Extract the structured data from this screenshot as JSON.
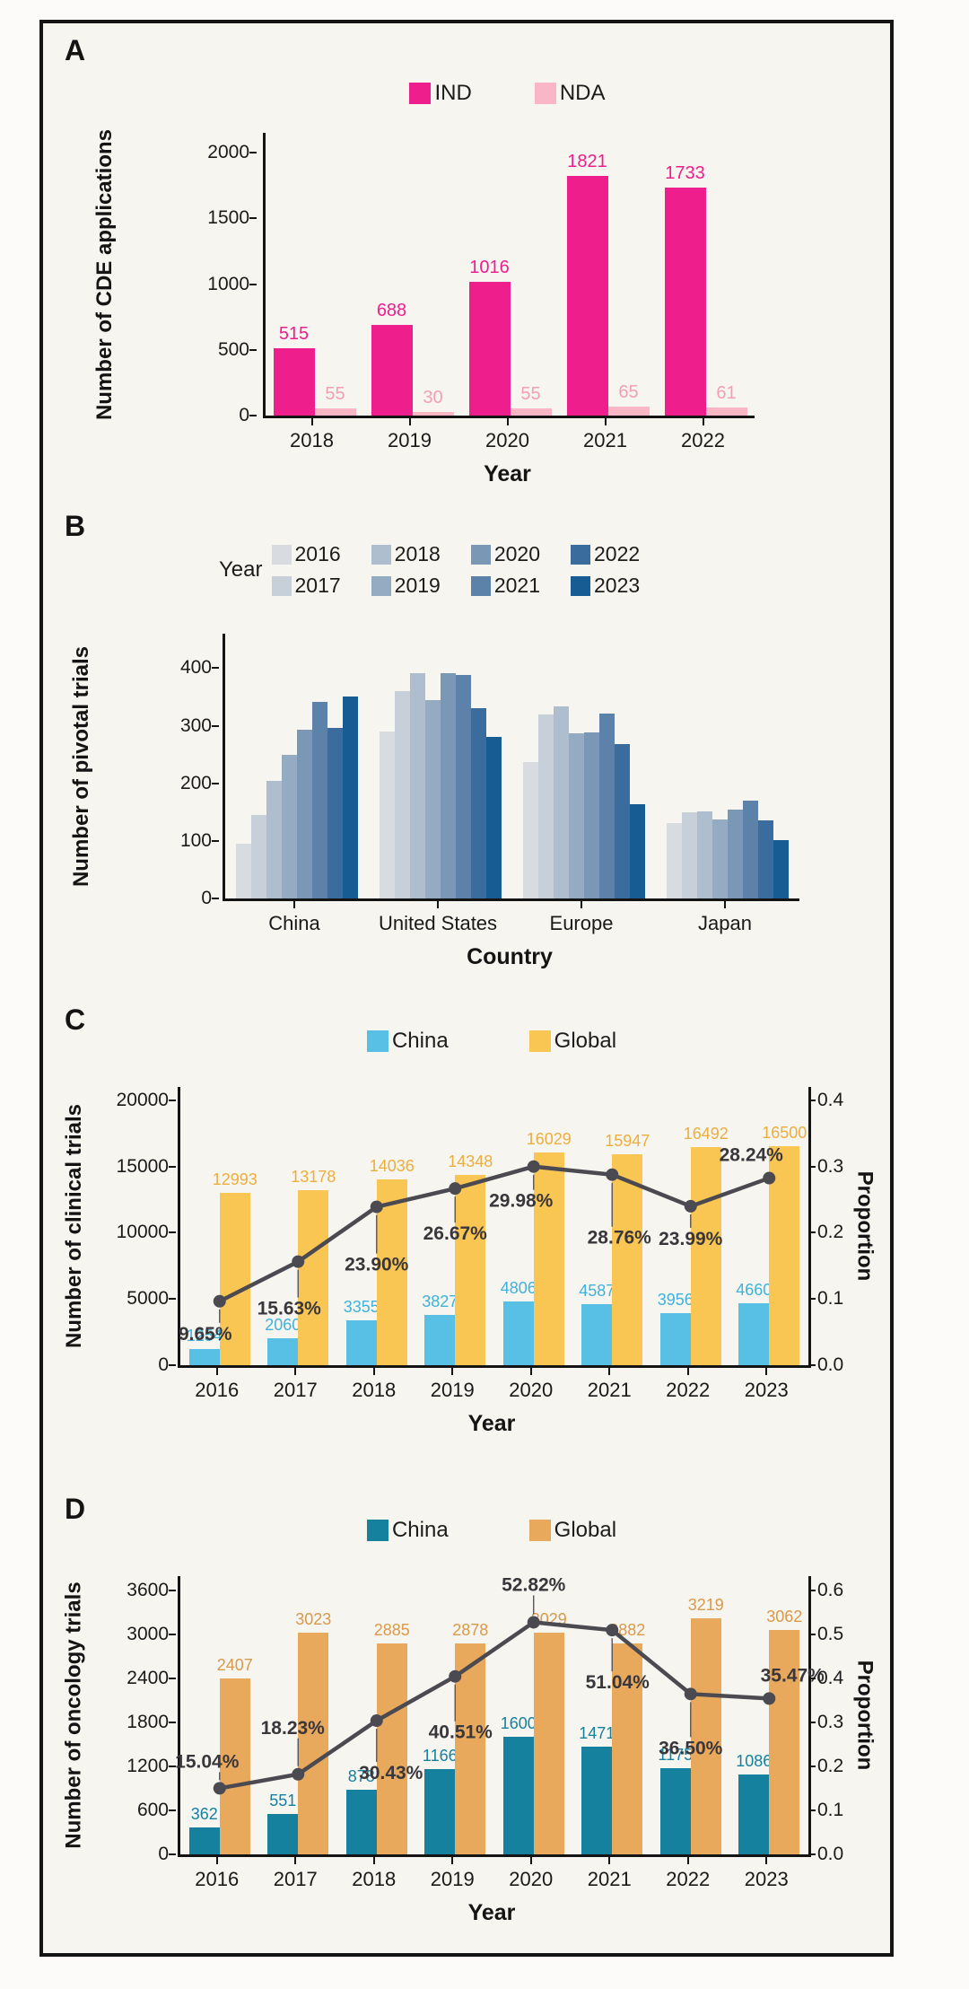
{
  "figure_caption": "",
  "chart_data": [
    {
      "panel": "A",
      "type": "bar",
      "categories": [
        "2018",
        "2019",
        "2020",
        "2021",
        "2022"
      ],
      "series": [
        {
          "name": "IND",
          "color": "#EE1E8C",
          "label_color": "#EE1E8C",
          "values": [
            515,
            688,
            1016,
            1821,
            1733
          ]
        },
        {
          "name": "NDA",
          "color": "#F9B7C6",
          "label_color": "#F29FB6",
          "values": [
            55,
            30,
            55,
            65,
            61
          ]
        }
      ],
      "ylabel": "Number of CDE applications",
      "xlabel": "Year",
      "yticks": [
        0,
        500,
        1000,
        1500,
        2000
      ],
      "ymax": 2150,
      "legend_position": "top",
      "show_bar_labels": true
    },
    {
      "panel": "B",
      "type": "bar",
      "categories": [
        "China",
        "United States",
        "Europe",
        "Japan"
      ],
      "legend_title": "Year",
      "series": [
        {
          "name": "2016",
          "color": "#D8DBDF",
          "values": [
            95,
            290,
            237,
            131
          ]
        },
        {
          "name": "2017",
          "color": "#C7CFD9",
          "values": [
            145,
            360,
            320,
            150
          ]
        },
        {
          "name": "2018",
          "color": "#AEBECE",
          "values": [
            205,
            391,
            333,
            151
          ]
        },
        {
          "name": "2019",
          "color": "#94ABC2",
          "values": [
            250,
            345,
            287,
            138
          ]
        },
        {
          "name": "2020",
          "color": "#7A97B6",
          "values": [
            293,
            391,
            289,
            154
          ]
        },
        {
          "name": "2021",
          "color": "#5C82A9",
          "values": [
            341,
            388,
            321,
            170
          ]
        },
        {
          "name": "2022",
          "color": "#3A6C9D",
          "values": [
            296,
            330,
            268,
            136
          ]
        },
        {
          "name": "2023",
          "color": "#175C92",
          "values": [
            351,
            280,
            163,
            102
          ]
        }
      ],
      "ylabel": "Number of pivotal trials",
      "xlabel": "Country",
      "yticks": [
        0,
        100,
        200,
        300,
        400
      ],
      "ymax": 460,
      "legend_position": "top",
      "show_bar_labels": false
    },
    {
      "panel": "C",
      "type": "bar+line",
      "categories": [
        "2016",
        "2017",
        "2018",
        "2019",
        "2020",
        "2021",
        "2022",
        "2023"
      ],
      "series": [
        {
          "name": "China",
          "color": "#57C0E4",
          "label_color": "#3FB2DB",
          "values": [
            1254,
            2060,
            3355,
            3827,
            4806,
            4587,
            3956,
            4660
          ]
        },
        {
          "name": "Global",
          "color": "#F9C553",
          "label_color": "#ECAE3E",
          "values": [
            12993,
            13178,
            14036,
            14348,
            16029,
            15947,
            16492,
            16500
          ]
        }
      ],
      "line": {
        "name": "Proportion (China/Global)",
        "color": "#4B4A50",
        "values_pct": [
          9.65,
          15.63,
          23.9,
          26.67,
          29.98,
          28.76,
          23.99,
          28.24
        ],
        "labels": [
          "9.65%",
          "15.63%",
          "23.90%",
          "26.67%",
          "29.98%",
          "28.76%",
          "23.99%",
          "28.24%"
        ],
        "label_dx": [
          -16,
          -10,
          0,
          0,
          -14,
          8,
          0,
          -20
        ],
        "label_dy": [
          36,
          52,
          64,
          50,
          38,
          70,
          36,
          -26
        ]
      },
      "ylabel": "Number of clinical trials",
      "ylabel_right": "Proportion",
      "xlabel": "Year",
      "yticks": [
        0,
        5000,
        10000,
        15000,
        20000
      ],
      "ymax": 21000,
      "yticks_right": [
        "0.0",
        "0.1",
        "0.2",
        "0.3",
        "0.4"
      ],
      "right_max": 0.42,
      "legend_position": "top",
      "show_bar_labels": true
    },
    {
      "panel": "D",
      "type": "bar+line",
      "categories": [
        "2016",
        "2017",
        "2018",
        "2019",
        "2020",
        "2021",
        "2022",
        "2023"
      ],
      "series": [
        {
          "name": "China",
          "color": "#16809F",
          "label_color": "#16809F",
          "values": [
            362,
            551,
            878,
            1166,
            1600,
            1471,
            1175,
            1086
          ]
        },
        {
          "name": "Global",
          "color": "#E9A95D",
          "label_color": "#D9994B",
          "values": [
            2407,
            3023,
            2885,
            2878,
            3029,
            2882,
            3219,
            3062
          ]
        }
      ],
      "line": {
        "name": "Proportion (China/Global)",
        "color": "#4B4A50",
        "values_pct": [
          15.04,
          18.23,
          30.43,
          40.51,
          52.82,
          51.04,
          36.5,
          35.47
        ],
        "labels": [
          "15.04%",
          "18.23%",
          "30.43%",
          "40.51%",
          "52.82%",
          "51.04%",
          "36.50%",
          "35.47%"
        ],
        "label_dx": [
          -14,
          -6,
          16,
          6,
          0,
          6,
          0,
          26
        ],
        "label_dy": [
          -30,
          -52,
          58,
          62,
          -42,
          58,
          60,
          -26
        ]
      },
      "ylabel": "Number of oncology trials",
      "ylabel_right": "Proportion",
      "xlabel": "Year",
      "yticks": [
        0,
        600,
        1200,
        1800,
        2400,
        3000,
        3600
      ],
      "ymax": 3800,
      "yticks_right": [
        "0.0",
        "0.1",
        "0.2",
        "0.3",
        "0.4",
        "0.5",
        "0.6"
      ],
      "right_max": 0.6333,
      "legend_position": "top",
      "show_bar_labels": true
    }
  ]
}
